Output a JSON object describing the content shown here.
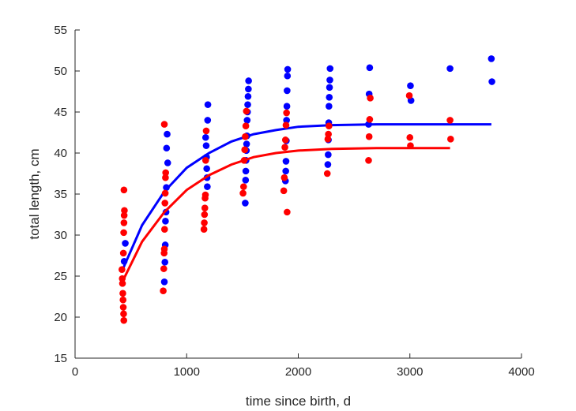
{
  "chart_data": {
    "type": "scatter",
    "title": "",
    "xlabel": "time since birth, d",
    "ylabel": "total length, cm",
    "xlim": [
      0,
      4000
    ],
    "ylim": [
      15,
      55
    ],
    "xticks": [
      0,
      1000,
      2000,
      3000,
      4000
    ],
    "yticks": [
      15,
      20,
      25,
      30,
      35,
      40,
      45,
      50,
      55
    ],
    "grid": false,
    "legend": "none",
    "series": [
      {
        "color": "#0000ff",
        "points": [
          [
            440,
            26.8
          ],
          [
            450,
            29.0
          ],
          [
            800,
            24.3
          ],
          [
            805,
            26.7
          ],
          [
            808,
            28.8
          ],
          [
            810,
            31.7
          ],
          [
            815,
            32.8
          ],
          [
            818,
            35.8
          ],
          [
            820,
            40.6
          ],
          [
            825,
            42.3
          ],
          [
            830,
            38.8
          ],
          [
            1170,
            41.9
          ],
          [
            1175,
            40.9
          ],
          [
            1178,
            39.5
          ],
          [
            1180,
            38.1
          ],
          [
            1183,
            37.0
          ],
          [
            1185,
            35.9
          ],
          [
            1188,
            44.0
          ],
          [
            1190,
            45.9
          ],
          [
            1525,
            33.9
          ],
          [
            1528,
            36.7
          ],
          [
            1530,
            37.8
          ],
          [
            1532,
            39.1
          ],
          [
            1535,
            40.3
          ],
          [
            1537,
            41.1
          ],
          [
            1540,
            42.1
          ],
          [
            1542,
            44.0
          ],
          [
            1545,
            45.0
          ],
          [
            1547,
            45.9
          ],
          [
            1550,
            46.9
          ],
          [
            1553,
            47.8
          ],
          [
            1555,
            48.8
          ],
          [
            1885,
            36.6
          ],
          [
            1888,
            37.8
          ],
          [
            1890,
            39.0
          ],
          [
            1893,
            41.5
          ],
          [
            1895,
            44.0
          ],
          [
            1898,
            45.7
          ],
          [
            1900,
            47.6
          ],
          [
            1903,
            49.4
          ],
          [
            1905,
            50.2
          ],
          [
            2265,
            38.6
          ],
          [
            2268,
            39.8
          ],
          [
            2270,
            41.6
          ],
          [
            2273,
            43.7
          ],
          [
            2275,
            45.7
          ],
          [
            2278,
            46.8
          ],
          [
            2280,
            48.0
          ],
          [
            2283,
            48.9
          ],
          [
            2285,
            50.3
          ],
          [
            2630,
            43.5
          ],
          [
            2635,
            47.2
          ],
          [
            2640,
            50.4
          ],
          [
            3005,
            48.2
          ],
          [
            3010,
            46.4
          ],
          [
            3360,
            50.3
          ],
          [
            3730,
            51.5
          ],
          [
            3735,
            48.7
          ]
        ],
        "fit": [
          [
            420,
            25.6
          ],
          [
            600,
            31.2
          ],
          [
            800,
            35.3
          ],
          [
            1000,
            38.2
          ],
          [
            1200,
            40.0
          ],
          [
            1400,
            41.4
          ],
          [
            1600,
            42.3
          ],
          [
            1800,
            42.8
          ],
          [
            2000,
            43.2
          ],
          [
            2300,
            43.4
          ],
          [
            2700,
            43.5
          ],
          [
            3100,
            43.5
          ],
          [
            3730,
            43.5
          ]
        ]
      },
      {
        "color": "#ff0000",
        "points": [
          [
            420,
            25.8
          ],
          [
            423,
            24.7
          ],
          [
            425,
            24.1
          ],
          [
            428,
            22.9
          ],
          [
            430,
            22.1
          ],
          [
            432,
            21.2
          ],
          [
            435,
            20.4
          ],
          [
            437,
            19.6
          ],
          [
            433,
            27.8
          ],
          [
            436,
            30.3
          ],
          [
            438,
            31.5
          ],
          [
            440,
            32.4
          ],
          [
            442,
            33.0
          ],
          [
            438,
            35.5
          ],
          [
            790,
            23.2
          ],
          [
            795,
            25.9
          ],
          [
            798,
            27.8
          ],
          [
            800,
            28.3
          ],
          [
            802,
            30.7
          ],
          [
            805,
            33.9
          ],
          [
            808,
            35.1
          ],
          [
            810,
            37.0
          ],
          [
            812,
            37.6
          ],
          [
            800,
            43.5
          ],
          [
            1155,
            30.7
          ],
          [
            1158,
            31.5
          ],
          [
            1160,
            32.5
          ],
          [
            1163,
            33.3
          ],
          [
            1165,
            34.5
          ],
          [
            1168,
            34.9
          ],
          [
            1170,
            39.1
          ],
          [
            1175,
            42.7
          ],
          [
            1505,
            35.1
          ],
          [
            1510,
            35.9
          ],
          [
            1515,
            39.1
          ],
          [
            1520,
            40.4
          ],
          [
            1525,
            42.0
          ],
          [
            1530,
            43.3
          ],
          [
            1535,
            45.1
          ],
          [
            1870,
            35.4
          ],
          [
            1875,
            37.0
          ],
          [
            1880,
            40.7
          ],
          [
            1885,
            41.6
          ],
          [
            1890,
            43.4
          ],
          [
            1895,
            44.9
          ],
          [
            1900,
            32.8
          ],
          [
            2260,
            37.5
          ],
          [
            2265,
            41.7
          ],
          [
            2270,
            42.3
          ],
          [
            2275,
            43.3
          ],
          [
            2630,
            39.1
          ],
          [
            2635,
            42.0
          ],
          [
            2640,
            44.1
          ],
          [
            2645,
            46.7
          ],
          [
            2995,
            47.0
          ],
          [
            3000,
            41.9
          ],
          [
            3005,
            40.9
          ],
          [
            3360,
            44.0
          ],
          [
            3365,
            41.7
          ]
        ],
        "fit": [
          [
            420,
            24.2
          ],
          [
            600,
            29.2
          ],
          [
            800,
            32.8
          ],
          [
            1000,
            35.5
          ],
          [
            1200,
            37.3
          ],
          [
            1400,
            38.6
          ],
          [
            1600,
            39.5
          ],
          [
            1800,
            40.0
          ],
          [
            2000,
            40.3
          ],
          [
            2300,
            40.5
          ],
          [
            2700,
            40.6
          ],
          [
            3000,
            40.6
          ],
          [
            3360,
            40.6
          ]
        ]
      }
    ]
  }
}
